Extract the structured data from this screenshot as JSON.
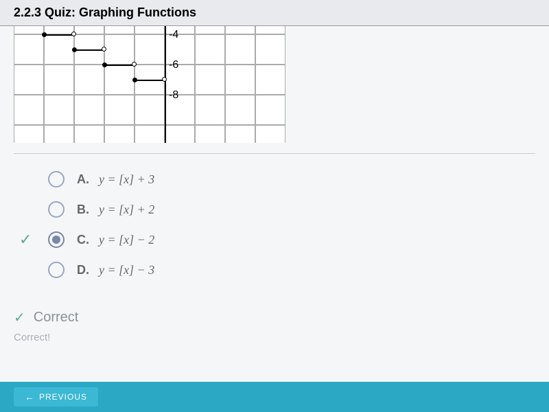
{
  "header": {
    "title": "2.2.3 Quiz: Graphing Functions"
  },
  "graph": {
    "cols": 9,
    "rows": 7,
    "cell_size": 44,
    "y_labels": [
      {
        "value": "-4",
        "row": 3
      },
      {
        "value": "-6",
        "row": 4
      },
      {
        "value": "-8",
        "row": 5
      }
    ],
    "steps": [
      {
        "col": 0,
        "row": 2.5
      },
      {
        "col": 1,
        "row": 3
      },
      {
        "col": 2,
        "row": 3.5
      },
      {
        "col": 3,
        "row": 4
      },
      {
        "col": 4,
        "row": 4.5
      }
    ]
  },
  "answers": {
    "items": [
      {
        "letter": "A.",
        "equation": "y = [x] + 3",
        "selected": false,
        "correct": false
      },
      {
        "letter": "B.",
        "equation": "y = [x] + 2",
        "selected": false,
        "correct": false
      },
      {
        "letter": "C.",
        "equation": "y = [x] − 2",
        "selected": true,
        "correct": true
      },
      {
        "letter": "D.",
        "equation": "y = [x] − 3",
        "selected": false,
        "correct": false
      }
    ]
  },
  "feedback": {
    "title": "Correct",
    "subtitle": "Correct!"
  },
  "nav": {
    "previous": "PREVIOUS"
  },
  "colors": {
    "accent": "#5aa89c",
    "radio_border": "#9ba5c4",
    "nav_bg": "#2ba8c4"
  }
}
